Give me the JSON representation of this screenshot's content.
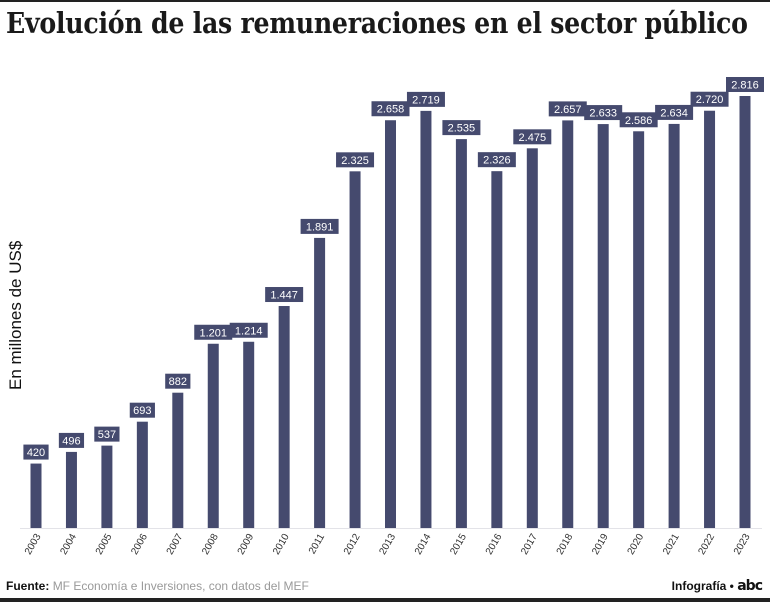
{
  "title": "Evolución de las remuneraciones en el sector público",
  "footer": {
    "source_label": "Fuente:",
    "source_text": "MF Economía e Inversiones, con datos del MEF",
    "credit": "Infografía •",
    "logo": "abc"
  },
  "chart_data": {
    "type": "bar",
    "title": "Evolución de las remuneraciones en el sector público",
    "xlabel": "",
    "ylabel": "En millones de US$",
    "categories": [
      "2003",
      "2004",
      "2005",
      "2006",
      "2007",
      "2008",
      "2009",
      "2010",
      "2011",
      "2012",
      "2013",
      "2014",
      "2015",
      "2016",
      "2017",
      "2018",
      "2019",
      "2020",
      "2021",
      "2022",
      "2023"
    ],
    "values": [
      420,
      496,
      537,
      693,
      882,
      1201,
      1214,
      1447,
      1891,
      2325,
      2658,
      2719,
      2535,
      2326,
      2475,
      2657,
      2633,
      2586,
      2634,
      2720,
      2816
    ],
    "data_labels": [
      "420",
      "496",
      "537",
      "693",
      "882",
      "1.201",
      "1.214",
      "1.447",
      "1.891",
      "2.325",
      "2.658",
      "2.719",
      "2.535",
      "2.326",
      "2.475",
      "2.657",
      "2.633",
      "2.586",
      "2.634",
      "2.720",
      "2.816"
    ],
    "ylim": [
      0,
      2816
    ],
    "grid": false,
    "bar_color": "#454a6e"
  }
}
